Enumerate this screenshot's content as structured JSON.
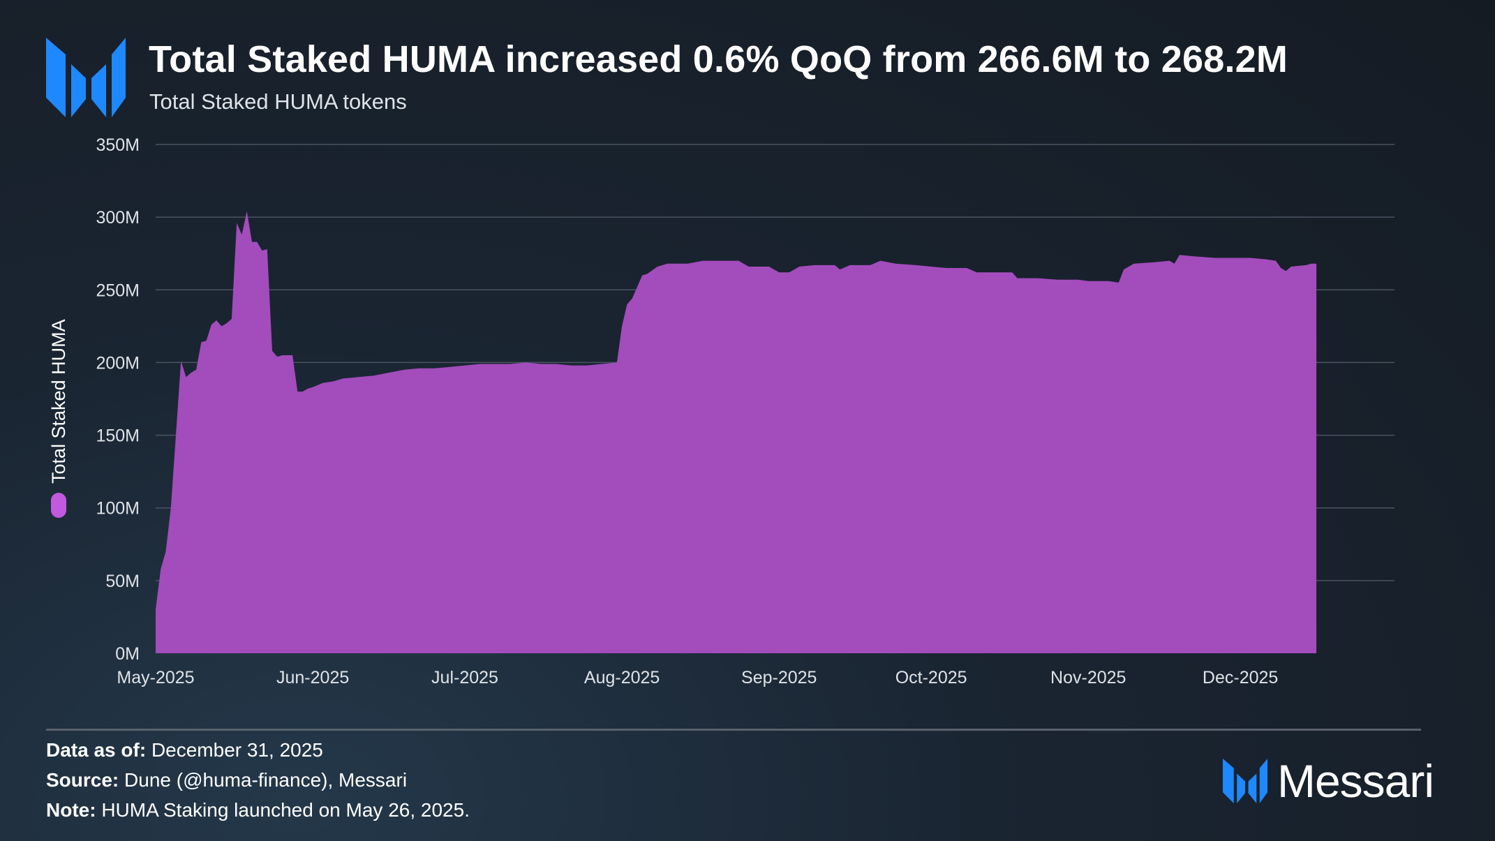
{
  "title": "Total Staked HUMA increased 0.6% QoQ from 266.6M to 268.2M",
  "subtitle": "Total Staked HUMA tokens",
  "colors": {
    "area": "#a34cbc",
    "legend_dot": "#c15ade",
    "brand_blue": "#1e88ff",
    "grid": "#4a5360"
  },
  "chart_data": {
    "type": "area",
    "ylabel": "Total Staked HUMA",
    "ylim": [
      0,
      350
    ],
    "yticks": [
      "0M",
      "50M",
      "100M",
      "150M",
      "200M",
      "250M",
      "300M",
      "350M"
    ],
    "xlim": [
      "2025-05-01",
      "2025-12-31"
    ],
    "xticks": [
      "May-2025",
      "Jun-2025",
      "Jul-2025",
      "Aug-2025",
      "Sep-2025",
      "Oct-2025",
      "Nov-2025",
      "Dec-2025"
    ],
    "legend": "left-vertical",
    "grid": true,
    "series": [
      {
        "name": "Total Staked HUMA",
        "points": [
          [
            "2025-05-01",
            30
          ],
          [
            "2025-05-02",
            58
          ],
          [
            "2025-05-03",
            70
          ],
          [
            "2025-05-04",
            100
          ],
          [
            "2025-05-05",
            150
          ],
          [
            "2025-05-06",
            201
          ],
          [
            "2025-05-07",
            190
          ],
          [
            "2025-05-08",
            193
          ],
          [
            "2025-05-09",
            195
          ],
          [
            "2025-05-10",
            214
          ],
          [
            "2025-05-11",
            215
          ],
          [
            "2025-05-12",
            226
          ],
          [
            "2025-05-13",
            229
          ],
          [
            "2025-05-14",
            225
          ],
          [
            "2025-05-15",
            227
          ],
          [
            "2025-05-16",
            230
          ],
          [
            "2025-05-17",
            296
          ],
          [
            "2025-05-18",
            288
          ],
          [
            "2025-05-19",
            304
          ],
          [
            "2025-05-20",
            283
          ],
          [
            "2025-05-21",
            283
          ],
          [
            "2025-05-22",
            277
          ],
          [
            "2025-05-23",
            278
          ],
          [
            "2025-05-24",
            208
          ],
          [
            "2025-05-25",
            204
          ],
          [
            "2025-05-26",
            205
          ],
          [
            "2025-05-27",
            205
          ],
          [
            "2025-05-28",
            205
          ],
          [
            "2025-05-29",
            180
          ],
          [
            "2025-05-30",
            180
          ],
          [
            "2025-05-31",
            182
          ],
          [
            "2025-06-01",
            183
          ],
          [
            "2025-06-03",
            186
          ],
          [
            "2025-06-05",
            187
          ],
          [
            "2025-06-07",
            189
          ],
          [
            "2025-06-10",
            190
          ],
          [
            "2025-06-13",
            191
          ],
          [
            "2025-06-16",
            193
          ],
          [
            "2025-06-19",
            195
          ],
          [
            "2025-06-22",
            196
          ],
          [
            "2025-06-25",
            196
          ],
          [
            "2025-06-28",
            197
          ],
          [
            "2025-07-01",
            198
          ],
          [
            "2025-07-04",
            199
          ],
          [
            "2025-07-07",
            199
          ],
          [
            "2025-07-10",
            199
          ],
          [
            "2025-07-13",
            200
          ],
          [
            "2025-07-16",
            199
          ],
          [
            "2025-07-19",
            199
          ],
          [
            "2025-07-22",
            198
          ],
          [
            "2025-07-25",
            198
          ],
          [
            "2025-07-28",
            199
          ],
          [
            "2025-07-31",
            200
          ],
          [
            "2025-08-01",
            225
          ],
          [
            "2025-08-02",
            240
          ],
          [
            "2025-08-03",
            244
          ],
          [
            "2025-08-05",
            260
          ],
          [
            "2025-08-06",
            261
          ],
          [
            "2025-08-08",
            266
          ],
          [
            "2025-08-10",
            268
          ],
          [
            "2025-08-14",
            268
          ],
          [
            "2025-08-17",
            270
          ],
          [
            "2025-08-20",
            270
          ],
          [
            "2025-08-24",
            270
          ],
          [
            "2025-08-26",
            266
          ],
          [
            "2025-08-30",
            266
          ],
          [
            "2025-09-01",
            262
          ],
          [
            "2025-09-03",
            262
          ],
          [
            "2025-09-05",
            266
          ],
          [
            "2025-09-08",
            267
          ],
          [
            "2025-09-12",
            267
          ],
          [
            "2025-09-13",
            264
          ],
          [
            "2025-09-15",
            267
          ],
          [
            "2025-09-19",
            267
          ],
          [
            "2025-09-21",
            270
          ],
          [
            "2025-09-24",
            268
          ],
          [
            "2025-09-28",
            267
          ],
          [
            "2025-10-01",
            266
          ],
          [
            "2025-10-04",
            265
          ],
          [
            "2025-10-08",
            265
          ],
          [
            "2025-10-10",
            262
          ],
          [
            "2025-10-14",
            262
          ],
          [
            "2025-10-17",
            262
          ],
          [
            "2025-10-18",
            258
          ],
          [
            "2025-10-22",
            258
          ],
          [
            "2025-10-26",
            257
          ],
          [
            "2025-10-30",
            257
          ],
          [
            "2025-11-01",
            256
          ],
          [
            "2025-11-05",
            256
          ],
          [
            "2025-11-07",
            255
          ],
          [
            "2025-11-08",
            264
          ],
          [
            "2025-11-10",
            268
          ],
          [
            "2025-11-14",
            269
          ],
          [
            "2025-11-17",
            270
          ],
          [
            "2025-11-18",
            268
          ],
          [
            "2025-11-19",
            274
          ],
          [
            "2025-11-22",
            273
          ],
          [
            "2025-11-26",
            272
          ],
          [
            "2025-11-30",
            272
          ],
          [
            "2025-12-03",
            272
          ],
          [
            "2025-12-06",
            271
          ],
          [
            "2025-12-08",
            270
          ],
          [
            "2025-12-09",
            265
          ],
          [
            "2025-12-10",
            263
          ],
          [
            "2025-12-11",
            266
          ],
          [
            "2025-12-14",
            267
          ],
          [
            "2025-12-15",
            268
          ],
          [
            "2025-12-16",
            268
          ]
        ]
      }
    ]
  },
  "footer": {
    "data_as_of_label": "Data as of:",
    "data_as_of_value": "December 31, 2025",
    "source_label": "Source:",
    "source_value": "Dune (@huma-finance), Messari",
    "note_label": "Note:",
    "note_value": "HUMA Staking launched on May 26, 2025."
  },
  "brand": {
    "name": "Messari",
    "logo_icon": "messari-logo-icon"
  }
}
